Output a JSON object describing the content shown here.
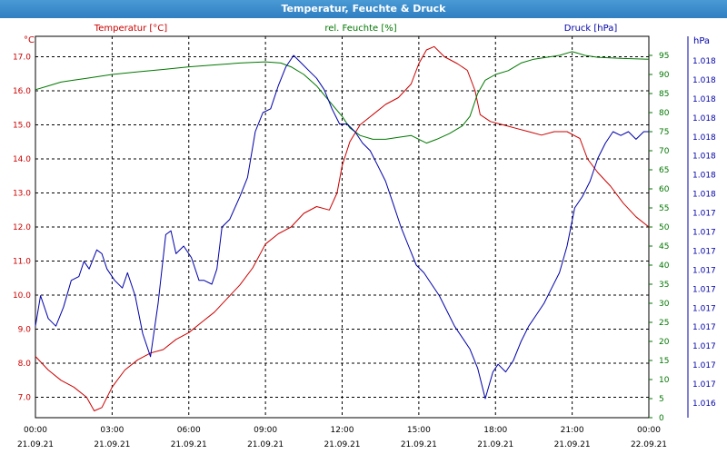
{
  "window": {
    "title": "Temperatur, Feuchte & Druck"
  },
  "colors": {
    "temperature": "#cc0000",
    "humidity": "#007700",
    "pressure": "#0000aa",
    "grid": "#000000",
    "title_bar": "#3a8ccf"
  },
  "chart_data": {
    "type": "line",
    "title": "Temperatur, Feuchte & Druck",
    "grid": true,
    "x_ticks": [
      {
        "time": "00:00",
        "date": "21.09.21"
      },
      {
        "time": "03:00",
        "date": "21.09.21"
      },
      {
        "time": "06:00",
        "date": "21.09.21"
      },
      {
        "time": "09:00",
        "date": "21.09.21"
      },
      {
        "time": "12:00",
        "date": "21.09.21"
      },
      {
        "time": "15:00",
        "date": "21.09.21"
      },
      {
        "time": "18:00",
        "date": "21.09.21"
      },
      {
        "time": "21:00",
        "date": "21.09.21"
      },
      {
        "time": "00:00",
        "date": "22.09.21"
      }
    ],
    "xlim": [
      "21.09.21 00:00",
      "22.09.21 00:00"
    ],
    "axes": {
      "temperature": {
        "label": "Temperatur [°C]",
        "unit": "°C",
        "ticks": [
          "7.0",
          "8.0",
          "9.0",
          "10.0",
          "11.0",
          "12.0",
          "13.0",
          "14.0",
          "15.0",
          "16.0",
          "17.0"
        ],
        "ylim": [
          6.4,
          17.6
        ]
      },
      "humidity": {
        "label": "rel. Feuchte [%]",
        "unit": "%",
        "ticks": [
          "0",
          "5",
          "10",
          "15",
          "20",
          "25",
          "30",
          "35",
          "40",
          "45",
          "50",
          "55",
          "60",
          "65",
          "70",
          "75",
          "80",
          "85",
          "90",
          "95"
        ],
        "ylim": [
          0,
          100
        ]
      },
      "pressure": {
        "label": "Druck [hPa]",
        "unit": "hPa",
        "ticks": [
          "1.016",
          "1.017",
          "1.017",
          "1.017",
          "1.017",
          "1.017",
          "1.017",
          "1.017",
          "1.017",
          "1.017",
          "1.017",
          "1.018",
          "1.018",
          "1.018",
          "1.018",
          "1.018",
          "1.018",
          "1.018",
          "1.018"
        ]
      }
    },
    "series": [
      {
        "name": "Temperatur [°C]",
        "axis": "temperature",
        "points": [
          [
            0,
            8.2
          ],
          [
            0.5,
            7.8
          ],
          [
            1,
            7.5
          ],
          [
            1.5,
            7.3
          ],
          [
            2,
            7.0
          ],
          [
            2.3,
            6.6
          ],
          [
            2.6,
            6.7
          ],
          [
            3,
            7.3
          ],
          [
            3.5,
            7.8
          ],
          [
            4,
            8.1
          ],
          [
            4.5,
            8.3
          ],
          [
            5,
            8.4
          ],
          [
            5.5,
            8.7
          ],
          [
            6,
            8.9
          ],
          [
            6.5,
            9.2
          ],
          [
            7,
            9.5
          ],
          [
            7.5,
            9.9
          ],
          [
            8,
            10.3
          ],
          [
            8.5,
            10.8
          ],
          [
            9,
            11.5
          ],
          [
            9.5,
            11.8
          ],
          [
            10,
            12.0
          ],
          [
            10.5,
            12.4
          ],
          [
            11,
            12.6
          ],
          [
            11.5,
            12.5
          ],
          [
            11.8,
            13.0
          ],
          [
            12,
            13.8
          ],
          [
            12.3,
            14.5
          ],
          [
            12.7,
            15.0
          ],
          [
            13.2,
            15.3
          ],
          [
            13.7,
            15.6
          ],
          [
            14.2,
            15.8
          ],
          [
            14.7,
            16.2
          ],
          [
            15,
            16.8
          ],
          [
            15.3,
            17.2
          ],
          [
            15.6,
            17.3
          ],
          [
            16,
            17.0
          ],
          [
            16.5,
            16.8
          ],
          [
            16.9,
            16.6
          ],
          [
            17.2,
            16.0
          ],
          [
            17.4,
            15.3
          ],
          [
            17.8,
            15.1
          ],
          [
            18.3,
            15.0
          ],
          [
            18.8,
            14.9
          ],
          [
            19.3,
            14.8
          ],
          [
            19.8,
            14.7
          ],
          [
            20.3,
            14.8
          ],
          [
            20.8,
            14.8
          ],
          [
            21.3,
            14.6
          ],
          [
            21.6,
            14.0
          ],
          [
            22,
            13.6
          ],
          [
            22.5,
            13.2
          ],
          [
            23,
            12.7
          ],
          [
            23.5,
            12.3
          ],
          [
            24,
            12.0
          ]
        ]
      },
      {
        "name": "rel. Feuchte [%]",
        "axis": "humidity",
        "points": [
          [
            0,
            86
          ],
          [
            0.5,
            87
          ],
          [
            1,
            88
          ],
          [
            1.5,
            88.5
          ],
          [
            2,
            89
          ],
          [
            2.5,
            89.5
          ],
          [
            3,
            90
          ],
          [
            4,
            90.7
          ],
          [
            5,
            91.3
          ],
          [
            6,
            92
          ],
          [
            7,
            92.5
          ],
          [
            8,
            93
          ],
          [
            9,
            93.3
          ],
          [
            9.6,
            93
          ],
          [
            10,
            92
          ],
          [
            10.5,
            90
          ],
          [
            11,
            87
          ],
          [
            11.5,
            83
          ],
          [
            12,
            79
          ],
          [
            12.3,
            76
          ],
          [
            12.7,
            74
          ],
          [
            13.2,
            73
          ],
          [
            13.7,
            73
          ],
          [
            14.2,
            73.5
          ],
          [
            14.7,
            74
          ],
          [
            15,
            73
          ],
          [
            15.3,
            72
          ],
          [
            15.7,
            73
          ],
          [
            16.2,
            74.5
          ],
          [
            16.7,
            76.5
          ],
          [
            17,
            79
          ],
          [
            17.3,
            85
          ],
          [
            17.6,
            88.5
          ],
          [
            18,
            90
          ],
          [
            18.5,
            91
          ],
          [
            19,
            93
          ],
          [
            19.5,
            94
          ],
          [
            20,
            94.5
          ],
          [
            20.5,
            95
          ],
          [
            21,
            96
          ],
          [
            21.5,
            95
          ],
          [
            22,
            94.5
          ],
          [
            23,
            94.2
          ],
          [
            24,
            94
          ]
        ]
      },
      {
        "name": "Druck [hPa]",
        "axis": "pressure",
        "points": [
          [
            0,
            24
          ],
          [
            0.2,
            32
          ],
          [
            0.5,
            26
          ],
          [
            0.8,
            24
          ],
          [
            1.1,
            29
          ],
          [
            1.4,
            36
          ],
          [
            1.7,
            37
          ],
          [
            1.9,
            41
          ],
          [
            2.1,
            39
          ],
          [
            2.4,
            44
          ],
          [
            2.6,
            43
          ],
          [
            2.8,
            39
          ],
          [
            3.1,
            36
          ],
          [
            3.4,
            34
          ],
          [
            3.6,
            38
          ],
          [
            3.9,
            32
          ],
          [
            4.2,
            22
          ],
          [
            4.5,
            16
          ],
          [
            4.8,
            30
          ],
          [
            5.1,
            48
          ],
          [
            5.3,
            49
          ],
          [
            5.5,
            43
          ],
          [
            5.8,
            45
          ],
          [
            6.1,
            42
          ],
          [
            6.4,
            36
          ],
          [
            6.6,
            36
          ],
          [
            6.9,
            35
          ],
          [
            7.1,
            39
          ],
          [
            7.3,
            50
          ],
          [
            7.6,
            52
          ],
          [
            8,
            58
          ],
          [
            8.3,
            63
          ],
          [
            8.6,
            75
          ],
          [
            8.9,
            80
          ],
          [
            9.2,
            81
          ],
          [
            9.5,
            87
          ],
          [
            9.8,
            92
          ],
          [
            10.1,
            95
          ],
          [
            10.4,
            93
          ],
          [
            10.7,
            91
          ],
          [
            11,
            89
          ],
          [
            11.3,
            86
          ],
          [
            11.6,
            81
          ],
          [
            11.9,
            77
          ],
          [
            12.2,
            77
          ],
          [
            12.5,
            75
          ],
          [
            12.8,
            72
          ],
          [
            13.1,
            70
          ],
          [
            13.4,
            66
          ],
          [
            13.7,
            62
          ],
          [
            14,
            56
          ],
          [
            14.3,
            50
          ],
          [
            14.6,
            45
          ],
          [
            14.9,
            40
          ],
          [
            15.2,
            38
          ],
          [
            15.5,
            35
          ],
          [
            15.8,
            32
          ],
          [
            16.1,
            28
          ],
          [
            16.4,
            24
          ],
          [
            16.7,
            21
          ],
          [
            17,
            18
          ],
          [
            17.3,
            13
          ],
          [
            17.6,
            5
          ],
          [
            17.9,
            12
          ],
          [
            18.1,
            14
          ],
          [
            18.4,
            12
          ],
          [
            18.7,
            15
          ],
          [
            19,
            20
          ],
          [
            19.3,
            24
          ],
          [
            19.6,
            27
          ],
          [
            19.9,
            30
          ],
          [
            20.2,
            34
          ],
          [
            20.5,
            38
          ],
          [
            20.8,
            45
          ],
          [
            21.1,
            55
          ],
          [
            21.4,
            58
          ],
          [
            21.7,
            62
          ],
          [
            22,
            68
          ],
          [
            22.3,
            72
          ],
          [
            22.6,
            75
          ],
          [
            22.9,
            74
          ],
          [
            23.2,
            75
          ],
          [
            23.5,
            73
          ],
          [
            23.8,
            75
          ],
          [
            24,
            75
          ]
        ]
      }
    ]
  }
}
